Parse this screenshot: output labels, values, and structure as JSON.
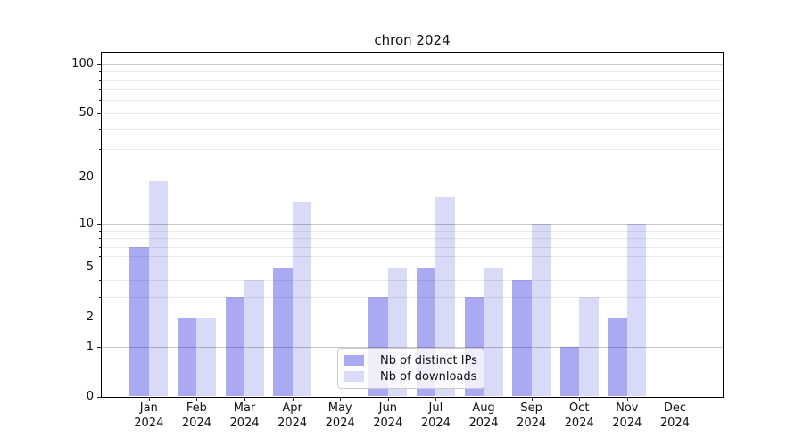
{
  "title": "chron 2024",
  "chart_data": {
    "type": "bar",
    "title": "chron 2024",
    "categories": [
      "Jan 2024",
      "Feb 2024",
      "Mar 2024",
      "Apr 2024",
      "May 2024",
      "Jun 2024",
      "Jul 2024",
      "Aug 2024",
      "Sep 2024",
      "Oct 2024",
      "Nov 2024",
      "Dec 2024"
    ],
    "series": [
      {
        "name": "Nb of distinct IPs",
        "color": "#a9a9f4",
        "values": [
          7,
          2,
          3,
          5,
          0,
          3,
          5,
          3,
          4,
          1,
          2,
          0
        ]
      },
      {
        "name": "Nb of downloads",
        "color": "#d9d9f8",
        "values": [
          19,
          2,
          4,
          14,
          0,
          5,
          15,
          5,
          10,
          3,
          10,
          0
        ]
      }
    ],
    "xlabel": "",
    "ylabel": "",
    "y_axis": {
      "scale": "log1p",
      "ylim": [
        0,
        120
      ],
      "labeled_ticks": [
        100,
        50,
        20,
        10,
        5,
        2,
        1,
        0
      ],
      "major_grid": [
        100,
        10,
        1
      ],
      "minor_grid": [
        90,
        80,
        70,
        60,
        50,
        40,
        30,
        20,
        9,
        8,
        7,
        6,
        5,
        4,
        3,
        2
      ],
      "minor_unlabeled_ticks": [
        90,
        80,
        70,
        60,
        40,
        30,
        9,
        8,
        7,
        6,
        4,
        3
      ]
    },
    "grid": "on",
    "legend": {
      "position": "lower center",
      "entries": [
        "Nb of distinct IPs",
        "Nb of downloads"
      ]
    }
  }
}
